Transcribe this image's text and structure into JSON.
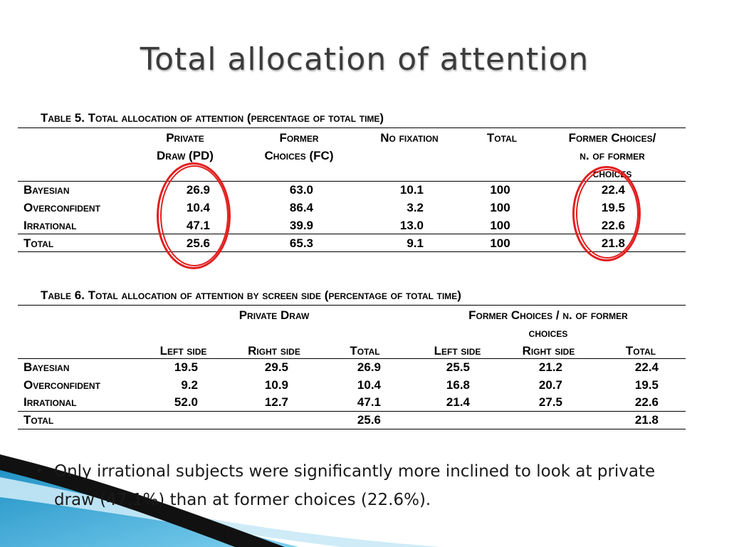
{
  "title": "Total allocation of attention",
  "table5": {
    "caption": "Table 5. Total allocation of attention (percentage of total time)",
    "headers": {
      "pd_line1": "Private",
      "pd_line2": "Draw (PD)",
      "fc_line1": "Former",
      "fc_line2": "Choices (FC)",
      "nofix": "No fixation",
      "total": "Total",
      "ratio_line1": "Former Choices/",
      "ratio_line2": "n. of former",
      "ratio_line3": "choices"
    },
    "rows": [
      {
        "label": "Bayesian",
        "pd": "26.9",
        "fc": "63.0",
        "nofix": "10.1",
        "total": "100",
        "ratio": "22.4"
      },
      {
        "label": "Overconfident",
        "pd": "10.4",
        "fc": "86.4",
        "nofix": "3.2",
        "total": "100",
        "ratio": "19.5"
      },
      {
        "label": "Irrational",
        "pd": "47.1",
        "fc": "39.9",
        "nofix": "13.0",
        "total": "100",
        "ratio": "22.6"
      },
      {
        "label": "Total",
        "pd": "25.6",
        "fc": "65.3",
        "nofix": "9.1",
        "total": "100",
        "ratio": "21.8"
      }
    ]
  },
  "table6": {
    "caption": "Table 6. Total allocation of attention by screen side (percentage of total time)",
    "group_headers": {
      "private_draw": "Private Draw",
      "former_line1": "Former Choices / n. of former",
      "former_line2": "choices"
    },
    "sub_headers": [
      "Left side",
      "Right side",
      "Total",
      "Left side",
      "Right side",
      "Total"
    ],
    "rows": [
      {
        "label": "Bayesian",
        "values": [
          "19.5",
          "29.5",
          "26.9",
          "25.5",
          "21.2",
          "22.4"
        ]
      },
      {
        "label": "Overconfident",
        "values": [
          "9.2",
          "10.9",
          "10.4",
          "16.8",
          "20.7",
          "19.5"
        ]
      },
      {
        "label": "Irrational",
        "values": [
          "52.0",
          "12.7",
          "47.1",
          "21.4",
          "27.5",
          "22.6"
        ]
      },
      {
        "label": "Total",
        "values": [
          "",
          "",
          "25.6",
          "",
          "",
          "21.8"
        ]
      }
    ]
  },
  "bullet": {
    "symbol": "•",
    "text": "Only irrational subjects were significantly more inclined to look at private draw (47.1%)  than at former choices (22.6%)."
  },
  "colors": {
    "highlight": "#e21f1f",
    "title": "#3b3b3b",
    "decor_blue": "#1b8fc4"
  }
}
